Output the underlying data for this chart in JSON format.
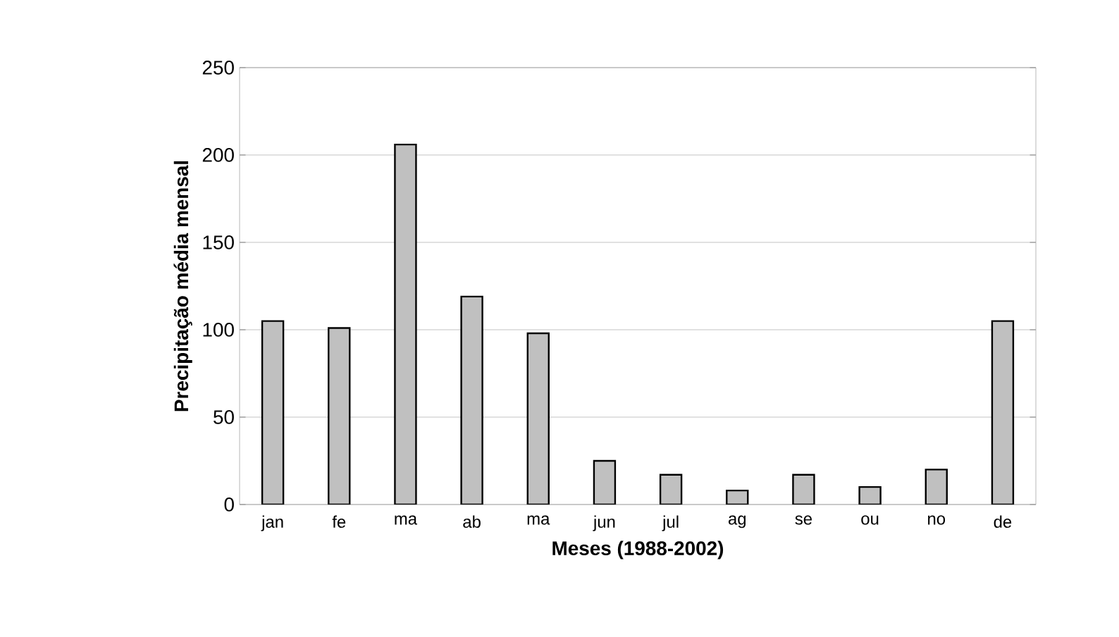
{
  "chart_data": {
    "type": "bar",
    "xlabel": "Meses (1988-2002)",
    "ylabel": "Precipitação média mensal",
    "categories": [
      "jan",
      "fe",
      "ma",
      "ab",
      "ma",
      "jun",
      "jul",
      "ag",
      "se",
      "ou",
      "no",
      "de"
    ],
    "values": [
      105,
      101,
      206,
      119,
      98,
      25,
      17,
      8,
      17,
      10,
      20,
      105
    ],
    "color": "#c0c0c0",
    "ylim": [
      0,
      250
    ],
    "yticks": [
      0,
      50,
      100,
      150,
      200,
      250
    ],
    "grid": "y"
  }
}
